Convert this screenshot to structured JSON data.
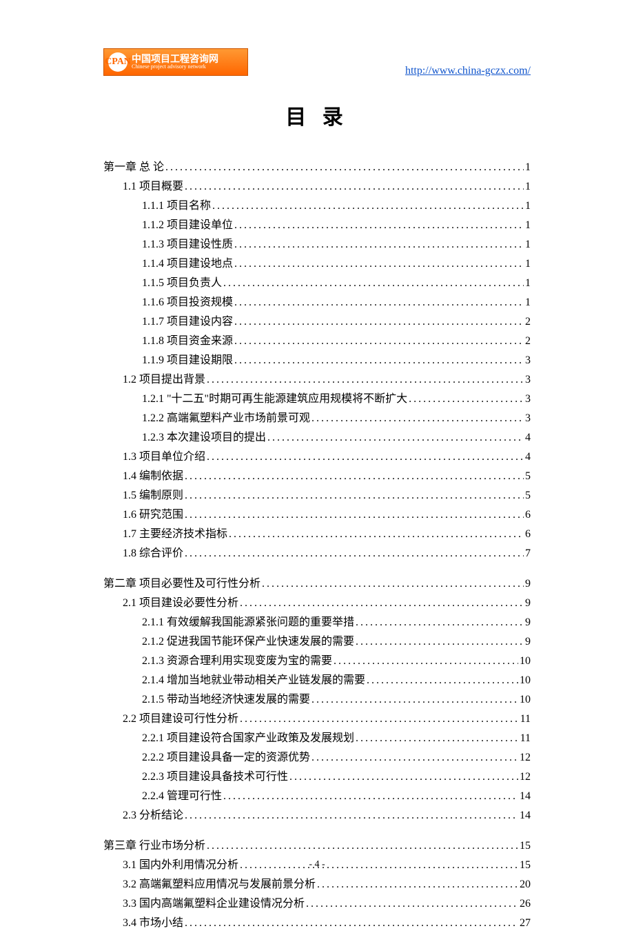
{
  "logo": {
    "icon_text": "CPAN",
    "cn": "中国项目工程咨询网",
    "en": "Chinese project advisory network"
  },
  "header_url": "http://www.china-gczx.com/",
  "doc_title": "目 录",
  "page_number": "- 4 -",
  "toc": [
    {
      "level": 1,
      "label": "第一章 总 论",
      "page": "1",
      "gap": false
    },
    {
      "level": 2,
      "label": "1.1 项目概要",
      "page": "1",
      "gap": false
    },
    {
      "level": 3,
      "label": "1.1.1 项目名称",
      "page": "1",
      "gap": false
    },
    {
      "level": 3,
      "label": "1.1.2 项目建设单位",
      "page": "1",
      "gap": false
    },
    {
      "level": 3,
      "label": "1.1.3 项目建设性质",
      "page": "1",
      "gap": false
    },
    {
      "level": 3,
      "label": "1.1.4 项目建设地点",
      "page": "1",
      "gap": false
    },
    {
      "level": 3,
      "label": "1.1.5 项目负责人",
      "page": "1",
      "gap": false
    },
    {
      "level": 3,
      "label": "1.1.6 项目投资规模",
      "page": "1",
      "gap": false
    },
    {
      "level": 3,
      "label": "1.1.7 项目建设内容",
      "page": "2",
      "gap": false
    },
    {
      "level": 3,
      "label": "1.1.8 项目资金来源",
      "page": "2",
      "gap": false
    },
    {
      "level": 3,
      "label": "1.1.9 项目建设期限",
      "page": "3",
      "gap": false
    },
    {
      "level": 2,
      "label": "1.2 项目提出背景",
      "page": "3",
      "gap": false
    },
    {
      "level": 3,
      "label": "1.2.1 \"十二五\"时期可再生能源建筑应用规模将不断扩大",
      "page": "3",
      "gap": false
    },
    {
      "level": 3,
      "label": "1.2.2 高端氟塑料产业市场前景可观",
      "page": "3",
      "gap": false
    },
    {
      "level": 3,
      "label": "1.2.3 本次建设项目的提出",
      "page": "4",
      "gap": false
    },
    {
      "level": 2,
      "label": "1.3 项目单位介绍",
      "page": "4",
      "gap": false
    },
    {
      "level": 2,
      "label": "1.4 编制依据",
      "page": "5",
      "gap": false
    },
    {
      "level": 2,
      "label": "1.5  编制原则",
      "page": "5",
      "gap": false
    },
    {
      "level": 2,
      "label": "1.6 研究范围",
      "page": "6",
      "gap": false
    },
    {
      "level": 2,
      "label": "1.7 主要经济技术指标",
      "page": "6",
      "gap": false
    },
    {
      "level": 2,
      "label": "1.8 综合评价",
      "page": "7",
      "gap": false
    },
    {
      "level": 1,
      "label": "第二章 项目必要性及可行性分析",
      "page": "9",
      "gap": true
    },
    {
      "level": 2,
      "label": "2.1 项目建设必要性分析",
      "page": "9",
      "gap": false
    },
    {
      "level": 3,
      "label": "2.1.1 有效缓解我国能源紧张问题的重要举措",
      "page": "9",
      "gap": false
    },
    {
      "level": 3,
      "label": "2.1.2 促进我国节能环保产业快速发展的需要",
      "page": "9",
      "gap": false
    },
    {
      "level": 3,
      "label": "2.1.3 资源合理利用实现变废为宝的需要",
      "page": "10",
      "gap": false
    },
    {
      "level": 3,
      "label": "2.1.4 增加当地就业带动相关产业链发展的需要",
      "page": "10",
      "gap": false
    },
    {
      "level": 3,
      "label": "2.1.5 带动当地经济快速发展的需要",
      "page": "10",
      "gap": false
    },
    {
      "level": 2,
      "label": "2.2 项目建设可行性分析",
      "page": "11",
      "gap": false
    },
    {
      "level": 3,
      "label": "2.2.1 项目建设符合国家产业政策及发展规划",
      "page": "11",
      "gap": false
    },
    {
      "level": 3,
      "label": "2.2.2 项目建设具备一定的资源优势",
      "page": "12",
      "gap": false
    },
    {
      "level": 3,
      "label": "2.2.3 项目建设具备技术可行性",
      "page": "12",
      "gap": false
    },
    {
      "level": 3,
      "label": "2.2.4 管理可行性",
      "page": "14",
      "gap": false
    },
    {
      "level": 2,
      "label": "2.3 分析结论",
      "page": "14",
      "gap": false
    },
    {
      "level": 1,
      "label": "第三章 行业市场分析",
      "page": "15",
      "gap": true
    },
    {
      "level": 2,
      "label": "3.1 国内外利用情况分析",
      "page": "15",
      "gap": false
    },
    {
      "level": 2,
      "label": "3.2 高端氟塑料应用情况与发展前景分析",
      "page": "20",
      "gap": false
    },
    {
      "level": 2,
      "label": "3.3 国内高端氟塑料企业建设情况分析",
      "page": "26",
      "gap": false
    },
    {
      "level": 2,
      "label": "3.4 市场小结",
      "page": "27",
      "gap": false
    }
  ]
}
